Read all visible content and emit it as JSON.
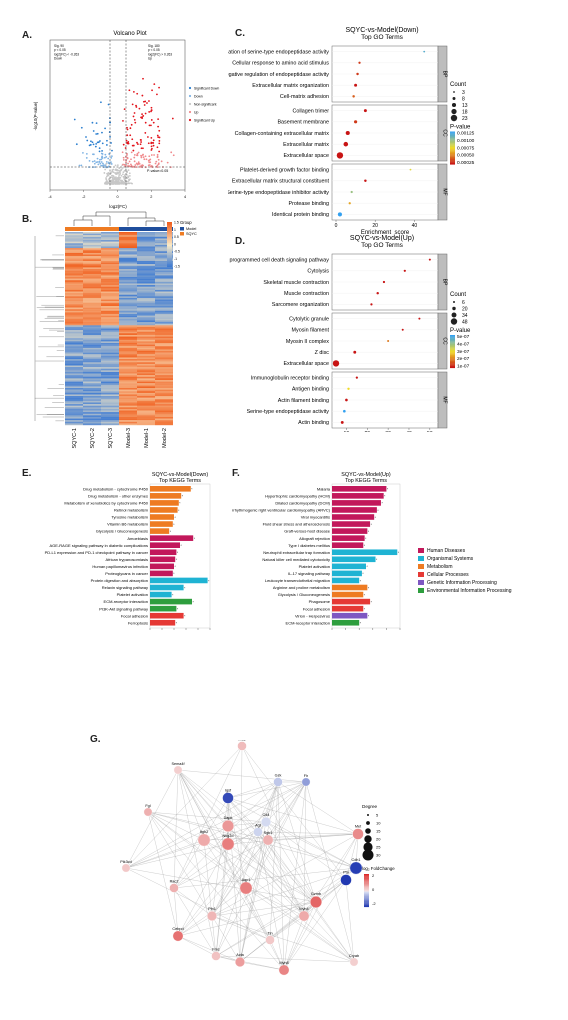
{
  "labels": {
    "A": "A.",
    "B": "B.",
    "C": "C.",
    "D": "D.",
    "E": "E.",
    "F": "F.",
    "G": "G."
  },
  "colors": {
    "up": "#e2131b",
    "down": "#2b7fcf",
    "nonsig": "#bdbdbd",
    "accent_orange": "#ee7b22",
    "blue_dark": "#1f4e9c"
  },
  "chart_data": [
    {
      "id": "A",
      "type": "scatter",
      "title": "Volcano Plot",
      "xlabel": "log2(FC)",
      "ylabel": "-log10(P-value)",
      "xlim": [
        -4,
        4
      ],
      "xticks": [
        "-4",
        "-2",
        "0",
        "2",
        "4"
      ],
      "annot_left": [
        "Sig. 90",
        "p < 0.05",
        "log2(FC) < -0.263",
        "Down"
      ],
      "annot_right": [
        "Sig. 180",
        "p < 0.05",
        "log2(FC) > 0.263",
        "Up"
      ],
      "threshold_label": "P-value=0.05",
      "legend": [
        "Significant Down",
        "Down",
        "Non-significant",
        "Up",
        "Significant Up"
      ]
    },
    {
      "id": "B",
      "type": "heatmap",
      "legend_title": "Group",
      "groups": [
        "Model",
        "SQYC"
      ],
      "columns": [
        "SQYC-1",
        "SQYC-2",
        "SQYC-3",
        "Model-3",
        "Model-1",
        "Model-2"
      ],
      "scale": [
        "1.5",
        "1",
        "0.5",
        "0",
        "-0.5",
        "-1",
        "-1.5"
      ]
    },
    {
      "id": "C",
      "type": "scatter",
      "title": "SQYC-vs-Model(Down)",
      "subtitle": "Top GO Terms",
      "xlabel": "Enrichment_score",
      "xticks": [
        "0",
        "20",
        "40"
      ],
      "count_title": "Count",
      "count_legend": [
        "3",
        "8",
        "13",
        "18",
        "23"
      ],
      "pval_title": "P-value",
      "pval_legend": [
        "0.00125",
        "0.00100",
        "0.00075",
        "0.00050",
        "0.00025"
      ],
      "categories": [
        "BP",
        "CC",
        "MF"
      ],
      "terms": [
        {
          "name": "Negative regulation of serine-type endopeptidase activity",
          "cat": "BP",
          "x": 45,
          "count": 3,
          "p": 0.0012
        },
        {
          "name": "Cellular response to amino acid stimulus",
          "cat": "BP",
          "x": 12,
          "count": 5,
          "p": 0.0003
        },
        {
          "name": "Negative regulation of endopeptidase activity",
          "cat": "BP",
          "x": 11,
          "count": 6,
          "p": 0.0003
        },
        {
          "name": "Extracellular matrix organization",
          "cat": "BP",
          "x": 10,
          "count": 8,
          "p": 0.0002
        },
        {
          "name": "Cell-matrix adhesion",
          "cat": "BP",
          "x": 9,
          "count": 6,
          "p": 0.0004
        },
        {
          "name": "Collagen trimer",
          "cat": "CC",
          "x": 15,
          "count": 8,
          "p": 0.0002
        },
        {
          "name": "Basement membrane",
          "cat": "CC",
          "x": 10,
          "count": 9,
          "p": 0.0003
        },
        {
          "name": "Collagen-containing extracellular matrix",
          "cat": "CC",
          "x": 6,
          "count": 13,
          "p": 0.0002
        },
        {
          "name": "Extracellular matrix",
          "cat": "CC",
          "x": 5,
          "count": 15,
          "p": 0.0002
        },
        {
          "name": "Extracellular space",
          "cat": "CC",
          "x": 2,
          "count": 23,
          "p": 0.0002
        },
        {
          "name": "Platelet-derived growth factor binding",
          "cat": "MF",
          "x": 38,
          "count": 3,
          "p": 0.0008
        },
        {
          "name": "Extracellular matrix structural constituent",
          "cat": "MF",
          "x": 15,
          "count": 6,
          "p": 0.0002
        },
        {
          "name": "Serine-type endopeptidase inhibitor activity",
          "cat": "MF",
          "x": 8,
          "count": 5,
          "p": 0.001
        },
        {
          "name": "Protease binding",
          "cat": "MF",
          "x": 7,
          "count": 5,
          "p": 0.0006
        },
        {
          "name": "Identical protein binding",
          "cat": "MF",
          "x": 2,
          "count": 13,
          "p": 0.0013
        }
      ]
    },
    {
      "id": "D",
      "type": "scatter",
      "title": "SQYC-vs-Model(Up)",
      "subtitle": "Top GO Terms",
      "xlabel": "Enrichment_score",
      "xticks": [
        "10",
        "20",
        "30",
        "40",
        "50"
      ],
      "count_title": "Count",
      "count_legend": [
        "6",
        "20",
        "34",
        "48"
      ],
      "pval_title": "P-value",
      "pval_legend": [
        "5e-07",
        "4e-07",
        "3e-07",
        "2e-07",
        "1e-07"
      ],
      "categories": [
        "BP",
        "CC",
        "MF"
      ],
      "terms": [
        {
          "name": "Granzyme-mediated programmed cell death signaling pathway",
          "cat": "BP",
          "x": 50,
          "count": 6,
          "p": 1e-07
        },
        {
          "name": "Cytolysis",
          "cat": "BP",
          "x": 38,
          "count": 8,
          "p": 1e-07
        },
        {
          "name": "Skeletal muscle contraction",
          "cat": "BP",
          "x": 28,
          "count": 8,
          "p": 1e-07
        },
        {
          "name": "Muscle contraction",
          "cat": "BP",
          "x": 25,
          "count": 10,
          "p": 1e-07
        },
        {
          "name": "Sarcomere organization",
          "cat": "BP",
          "x": 22,
          "count": 8,
          "p": 1e-07
        },
        {
          "name": "Cytolytic granule",
          "cat": "CC",
          "x": 45,
          "count": 6,
          "p": 1e-07
        },
        {
          "name": "Myosin filament",
          "cat": "CC",
          "x": 37,
          "count": 6,
          "p": 1e-07
        },
        {
          "name": "Myosin II complex",
          "cat": "CC",
          "x": 30,
          "count": 6,
          "p": 2e-07
        },
        {
          "name": "Z disc",
          "cat": "CC",
          "x": 14,
          "count": 14,
          "p": 1e-07
        },
        {
          "name": "Extracellular space",
          "cat": "CC",
          "x": 5,
          "count": 48,
          "p": 1e-07
        },
        {
          "name": "Immunoglobulin receptor binding",
          "cat": "MF",
          "x": 15,
          "count": 8,
          "p": 1e-07
        },
        {
          "name": "Antigen binding",
          "cat": "MF",
          "x": 11,
          "count": 10,
          "p": 3e-07
        },
        {
          "name": "Actin filament binding",
          "cat": "MF",
          "x": 10,
          "count": 12,
          "p": 1e-07
        },
        {
          "name": "Serine-type endopeptidase activity",
          "cat": "MF",
          "x": 9,
          "count": 12,
          "p": 5e-07
        },
        {
          "name": "Actin binding",
          "cat": "MF",
          "x": 8,
          "count": 14,
          "p": 1e-07
        }
      ]
    },
    {
      "id": "E",
      "type": "bar",
      "title": "SQYC-vs-Model(Down)",
      "subtitle": "Top KEGG Terms",
      "xlabel": "-log10(P-value)",
      "xticks": [
        "0",
        "1",
        "2",
        "3",
        "4",
        "5"
      ],
      "bars": [
        {
          "name": "Drug metabolism - cytochrome P450",
          "value": 3.4,
          "cls": "Metabolism"
        },
        {
          "name": "Drug metabolism - other enzymes",
          "value": 2.6,
          "cls": "Metabolism"
        },
        {
          "name": "Metabolism of xenobiotics by cytochrome P450",
          "value": 2.4,
          "cls": "Metabolism"
        },
        {
          "name": "Retinol metabolism",
          "value": 2.3,
          "cls": "Metabolism"
        },
        {
          "name": "Tyrosine metabolism",
          "value": 2.0,
          "cls": "Metabolism"
        },
        {
          "name": "Vitamin B6 metabolism",
          "value": 1.9,
          "cls": "Metabolism"
        },
        {
          "name": "Glycolysis / Gluconeogenesis",
          "value": 1.6,
          "cls": "Metabolism"
        },
        {
          "name": "Amoebiasis",
          "value": 3.6,
          "cls": "Human Diseases"
        },
        {
          "name": "AGE-RAGE signaling pathway in diabetic complications",
          "value": 2.5,
          "cls": "Human Diseases"
        },
        {
          "name": "PD-L1 expression and PD-1 checkpoint pathway in cancer",
          "value": 2.2,
          "cls": "Human Diseases"
        },
        {
          "name": "African trypanosomiasis",
          "value": 2.1,
          "cls": "Human Diseases"
        },
        {
          "name": "Human papillomavirus infection",
          "value": 2.0,
          "cls": "Human Diseases"
        },
        {
          "name": "Proteoglycans in cancer",
          "value": 1.9,
          "cls": "Human Diseases"
        },
        {
          "name": "Protein digestion and absorption",
          "value": 4.8,
          "cls": "Organismal Systems"
        },
        {
          "name": "Relaxin signaling pathway",
          "value": 2.8,
          "cls": "Organismal Systems"
        },
        {
          "name": "Platelet activation",
          "value": 1.8,
          "cls": "Organismal Systems"
        },
        {
          "name": "ECM-receptor interaction",
          "value": 3.5,
          "cls": "Environmental Information Processing"
        },
        {
          "name": "PI3K-Akt signaling pathway",
          "value": 2.2,
          "cls": "Environmental Information Processing"
        },
        {
          "name": "Focal adhesion",
          "value": 2.8,
          "cls": "Cellular Processes"
        },
        {
          "name": "Ferroptosis",
          "value": 2.1,
          "cls": "Cellular Processes"
        }
      ]
    },
    {
      "id": "F",
      "type": "bar",
      "title": "SQYC-vs-Model(Up)",
      "subtitle": "Top KEGG Terms",
      "xlabel": "-log10(P-value)",
      "xticks": [
        "0",
        "1",
        "2",
        "3",
        "4",
        "5"
      ],
      "legend": [
        {
          "name": "Human Diseases",
          "color": "#c2185b"
        },
        {
          "name": "Organismal Systems",
          "color": "#1fb3d3"
        },
        {
          "name": "Metabolism",
          "color": "#ee7b22"
        },
        {
          "name": "Cellular Processes",
          "color": "#e53935"
        },
        {
          "name": "Genetic Information Processing",
          "color": "#7e57c2"
        },
        {
          "name": "Environmental Information Processing",
          "color": "#2e9e3e"
        }
      ],
      "bars": [
        {
          "name": "Malaria",
          "value": 4.0,
          "cls": "Human Diseases"
        },
        {
          "name": "Hypertrophic cardiomyopathy (HCM)",
          "value": 3.8,
          "cls": "Human Diseases"
        },
        {
          "name": "Dilated cardiomyopathy (DCM)",
          "value": 3.6,
          "cls": "Human Diseases"
        },
        {
          "name": "Arrhythmogenic right ventricular cardiomyopathy (ARVC)",
          "value": 3.3,
          "cls": "Human Diseases"
        },
        {
          "name": "Viral myocarditis",
          "value": 3.1,
          "cls": "Human Diseases"
        },
        {
          "name": "Fluid shear stress and atherosclerosis",
          "value": 2.8,
          "cls": "Human Diseases"
        },
        {
          "name": "Graft-versus-host disease",
          "value": 2.6,
          "cls": "Human Diseases"
        },
        {
          "name": "Allograft rejection",
          "value": 2.4,
          "cls": "Human Diseases"
        },
        {
          "name": "Type I diabetes mellitus",
          "value": 2.3,
          "cls": "Human Diseases"
        },
        {
          "name": "Neutrophil extracellular trap formation",
          "value": 4.8,
          "cls": "Organismal Systems"
        },
        {
          "name": "Natural killer cell mediated cytotoxicity",
          "value": 3.2,
          "cls": "Organismal Systems"
        },
        {
          "name": "Platelet activation",
          "value": 2.5,
          "cls": "Organismal Systems"
        },
        {
          "name": "IL-17 signaling pathway",
          "value": 2.2,
          "cls": "Organismal Systems"
        },
        {
          "name": "Leukocyte transendothelial migration",
          "value": 2.0,
          "cls": "Organismal Systems"
        },
        {
          "name": "Arginine and proline metabolism",
          "value": 2.6,
          "cls": "Metabolism"
        },
        {
          "name": "Glycolysis / Gluconeogenesis",
          "value": 2.3,
          "cls": "Metabolism"
        },
        {
          "name": "Phagosome",
          "value": 2.8,
          "cls": "Cellular Processes"
        },
        {
          "name": "Focal adhesion",
          "value": 2.3,
          "cls": "Cellular Processes"
        },
        {
          "name": "Virion - Herpesvirus",
          "value": 2.6,
          "cls": "Genetic Information Processing"
        },
        {
          "name": "ECM-receptor interaction",
          "value": 2.0,
          "cls": "Environmental Information Processing"
        }
      ]
    },
    {
      "id": "G",
      "type": "network",
      "degree_title": "Degree",
      "degree_legend": [
        "5",
        "10",
        "15",
        "20",
        "25",
        "30"
      ],
      "fc_title": "log₂ FoldChange",
      "fc_legend": [
        "2",
        "0",
        "-2"
      ],
      "nodes": [
        {
          "name": "Mdc",
          "fc": 0.6,
          "deg": 12
        },
        {
          "name": "Sema4f",
          "fc": 0.3,
          "deg": 10
        },
        {
          "name": "Gzk",
          "fc": -0.5,
          "deg": 12
        },
        {
          "name": "Fh",
          "fc": -1.2,
          "deg": 10
        },
        {
          "name": "Fgl",
          "fc": 0.8,
          "deg": 10
        },
        {
          "name": "Igsf",
          "fc": -2.6,
          "deg": 18
        },
        {
          "name": "Itgb2",
          "fc": 0.9,
          "deg": 22
        },
        {
          "name": "Sgk1",
          "fc": 0.8,
          "deg": 16
        },
        {
          "name": "Dapk",
          "fc": 1.2,
          "deg": 20
        },
        {
          "name": "Nkg2d",
          "fc": 1.6,
          "deg": 22
        },
        {
          "name": "Agt",
          "fc": -0.3,
          "deg": 12
        },
        {
          "name": "Cd4",
          "fc": -0.2,
          "deg": 14
        },
        {
          "name": "Met",
          "fc": 1.4,
          "deg": 18
        },
        {
          "name": "Cdh1",
          "fc": -2.8,
          "deg": 22
        },
        {
          "name": "Ptn",
          "fc": -2.9,
          "deg": 18
        },
        {
          "name": "Pik3cd",
          "fc": 0.4,
          "deg": 10
        },
        {
          "name": "Rac2",
          "fc": 0.8,
          "deg": 12
        },
        {
          "name": "Aqp1",
          "fc": 1.6,
          "deg": 22
        },
        {
          "name": "Gzmb",
          "fc": 2.0,
          "deg": 20
        },
        {
          "name": "Pfn1",
          "fc": 0.7,
          "deg": 14
        },
        {
          "name": "Myh4",
          "fc": 0.9,
          "deg": 16
        },
        {
          "name": "Cebpd",
          "fc": 1.8,
          "deg": 16
        },
        {
          "name": "Tln",
          "fc": 0.4,
          "deg": 12
        },
        {
          "name": "Fmc",
          "fc": 0.5,
          "deg": 12
        },
        {
          "name": "Acta",
          "fc": 1.1,
          "deg": 14
        },
        {
          "name": "Myh8",
          "fc": 1.5,
          "deg": 16
        },
        {
          "name": "Cryab",
          "fc": 0.3,
          "deg": 10
        }
      ]
    }
  ]
}
